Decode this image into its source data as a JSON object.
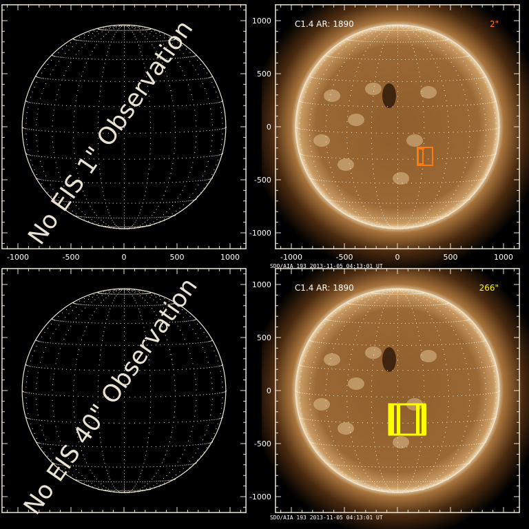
{
  "panels": [
    {
      "id": "eis-1",
      "message": "No EIS 1\" Observation",
      "has_image": false
    },
    {
      "id": "aia-1",
      "label": "C1.4 AR: 1890",
      "slit": "2\"",
      "slit_color": "#ff7a10",
      "footer": "SDO/AIA 193   2013-11-05 04:13:01 UT",
      "has_image": true
    },
    {
      "id": "eis-40",
      "message": "No EIS 40\" Observation",
      "has_image": false
    },
    {
      "id": "aia-40",
      "label": "C1.4 AR: 1890",
      "slit": "266\"",
      "slit_color": "#ffff00",
      "footer": "SDO/AIA 193   2013-11-05 04:13:01 UT",
      "has_image": true
    }
  ],
  "axes": {
    "ticks": [
      -1000,
      -500,
      0,
      500,
      1000
    ],
    "tick_labels": [
      "-1000",
      "-500",
      "0",
      "500",
      "1000"
    ],
    "range": [
      -1150,
      1150
    ]
  },
  "colors": {
    "frame": "#ece6d4",
    "grid": "#f4f0e0"
  }
}
